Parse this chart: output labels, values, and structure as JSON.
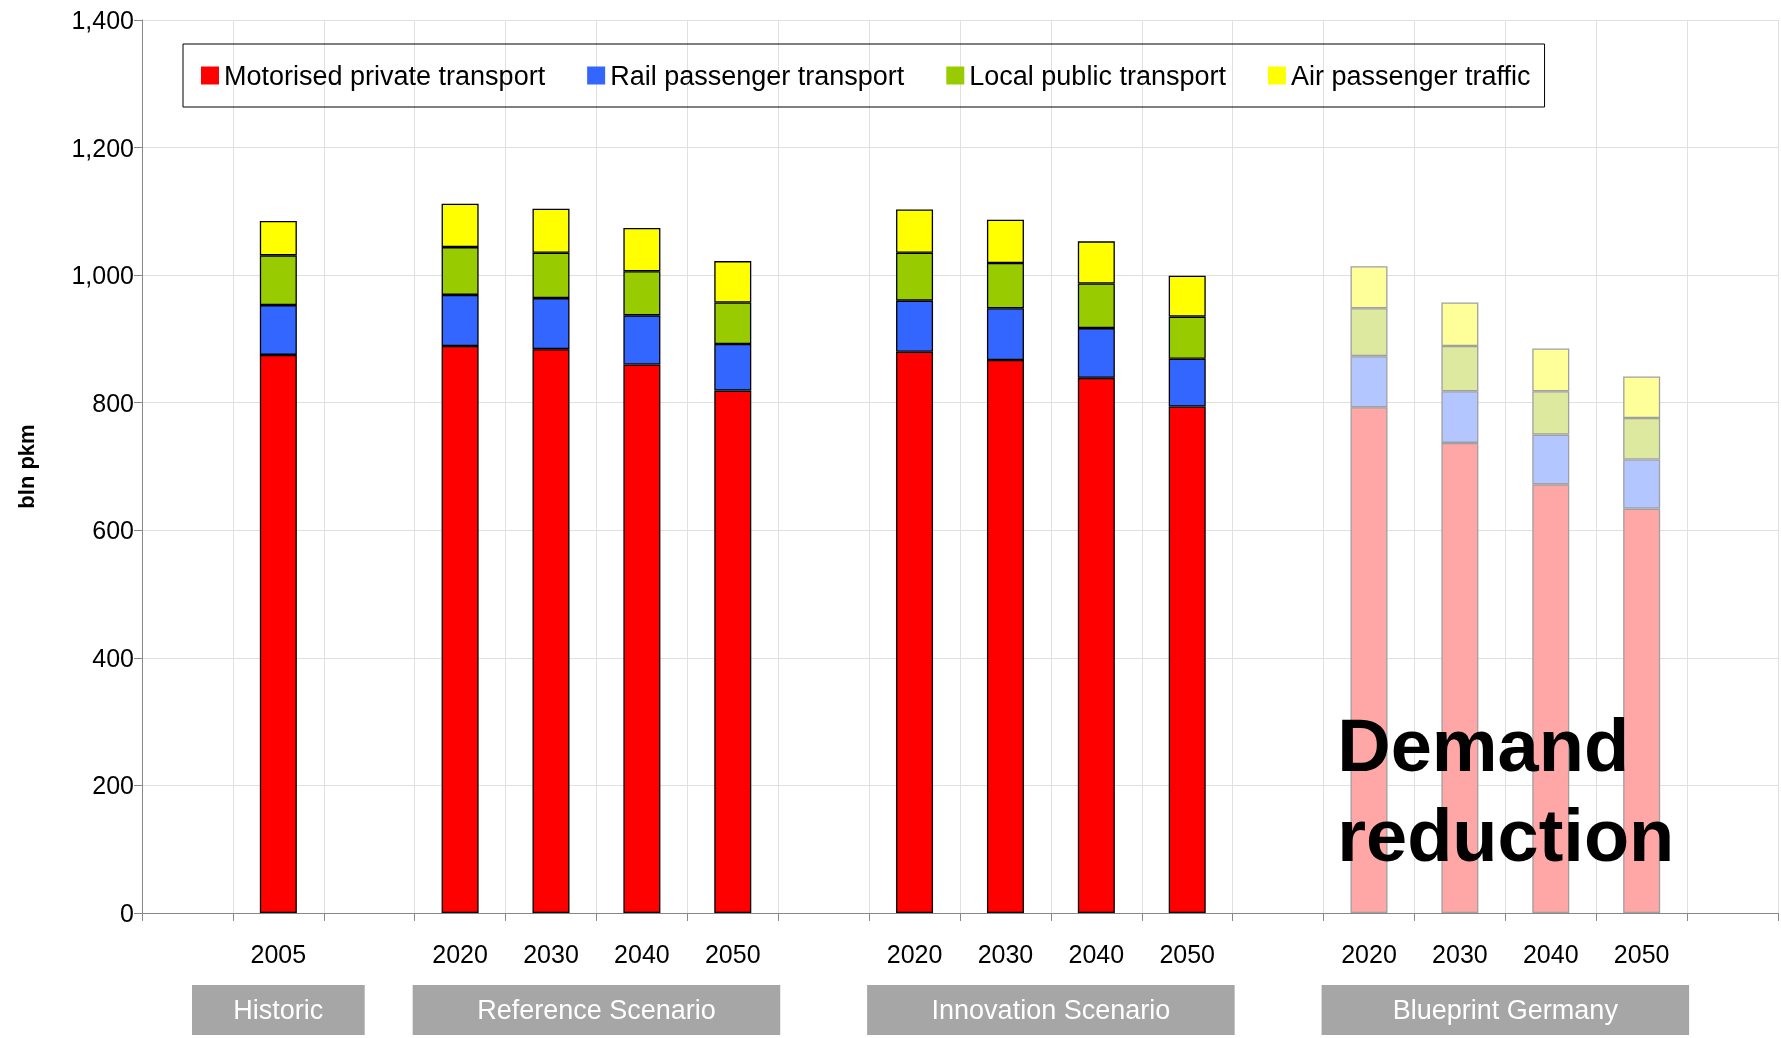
{
  "chart_data": {
    "type": "bar",
    "stacked": true,
    "ylabel": "bln pkm",
    "categories": [
      null,
      "2005",
      null,
      "2020",
      "2030",
      "2040",
      "2050",
      null,
      "2020",
      "2030",
      "2040",
      "2050",
      null,
      "2020",
      "2030",
      "2040",
      "2050",
      null
    ],
    "series": [
      {
        "name": "Motorised private transport",
        "color": "#ff0000",
        "colors": [
          null,
          "#ff0000",
          null,
          "#ff0000",
          "#ff0000",
          "#ff0000",
          "#ff0000",
          null,
          "#ff0000",
          "#ff0000",
          "#ff0000",
          "#ff0000",
          null,
          "#ffa6a6",
          "#ffa6a6",
          "#ffa6a6",
          "#ffa6a6",
          null
        ],
        "values": [
          null,
          875,
          null,
          889,
          884,
          860,
          819,
          null,
          880,
          867,
          839,
          794,
          null,
          793,
          737,
          672,
          634,
          null
        ]
      },
      {
        "name": "Rail passenger transport",
        "color": "#3366ff",
        "colors": [
          null,
          "#3366ff",
          null,
          "#3366ff",
          "#3366ff",
          "#3366ff",
          "#3366ff",
          null,
          "#3366ff",
          "#3366ff",
          "#3366ff",
          "#3366ff",
          null,
          "#b3c6ff",
          "#b3c6ff",
          "#b3c6ff",
          "#b3c6ff",
          null
        ],
        "values": [
          null,
          78,
          null,
          80,
          80,
          77,
          73,
          null,
          80,
          81,
          78,
          75,
          null,
          80,
          81,
          78,
          77,
          null
        ]
      },
      {
        "name": "Local public transport",
        "color": "#99cc00",
        "colors": [
          null,
          "#99cc00",
          null,
          "#99cc00",
          "#99cc00",
          "#99cc00",
          "#99cc00",
          null,
          "#99cc00",
          "#99cc00",
          "#99cc00",
          "#99cc00",
          null,
          "#dce99f",
          "#dce99f",
          "#dce99f",
          "#dce99f",
          null
        ],
        "values": [
          null,
          78,
          null,
          75,
          71,
          69,
          65,
          null,
          75,
          71,
          70,
          66,
          null,
          75,
          71,
          68,
          65,
          null
        ]
      },
      {
        "name": "Air passenger traffic",
        "color": "#ffff00",
        "colors": [
          null,
          "#ffff00",
          null,
          "#ffff00",
          "#ffff00",
          "#ffff00",
          "#ffff00",
          null,
          "#ffff00",
          "#ffff00",
          "#ffff00",
          "#ffff00",
          null,
          "#ffff99",
          "#ffff99",
          "#ffff99",
          "#ffff99",
          null
        ],
        "values": [
          null,
          54,
          null,
          68,
          69,
          68,
          65,
          null,
          68,
          68,
          66,
          64,
          null,
          66,
          68,
          67,
          65,
          null
        ]
      }
    ],
    "ylim": [
      0,
      1400
    ],
    "yticks": [
      0,
      200,
      400,
      600,
      800,
      {
        "value": 1000,
        "label": "1,000"
      },
      {
        "value": 1200,
        "label": "1,200"
      },
      {
        "value": 1400,
        "label": "1,400"
      }
    ],
    "grid": true,
    "legend": "top",
    "annotations": [
      "Historic",
      "Reference Scenario",
      "Innovation Scenario",
      "Blueprint Germany",
      "Demand reduction"
    ]
  }
}
